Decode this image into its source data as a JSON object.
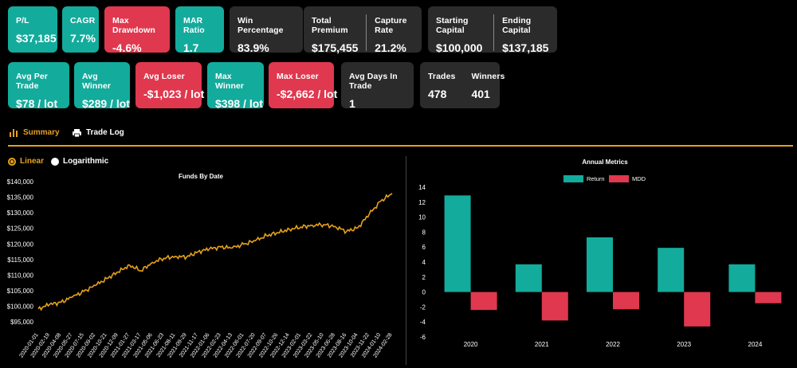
{
  "cards_row1": [
    {
      "label": "P/L",
      "value": "$37,185",
      "color": "teal"
    },
    {
      "label": "CAGR",
      "value": "7.7%",
      "color": "teal"
    },
    {
      "label": "Max Drawdown",
      "value": "-4.6%",
      "color": "red"
    },
    {
      "label": "MAR Ratio",
      "value": "1.7",
      "color": "teal"
    },
    {
      "label": "Win Percentage",
      "value": "83.9%",
      "color": "dark"
    }
  ],
  "split_row1": [
    {
      "left": {
        "label": "Total Premium",
        "value": "$175,455"
      },
      "right": {
        "label": "Capture Rate",
        "value": "21.2%"
      }
    },
    {
      "left": {
        "label": "Starting Capital",
        "value": "$100,000"
      },
      "right": {
        "label": "Ending Capital",
        "value": "$137,185"
      }
    }
  ],
  "cards_row2": [
    {
      "label": "Avg Per Trade",
      "value": "$78 / lot",
      "color": "teal"
    },
    {
      "label": "Avg Winner",
      "value": "$289 / lot",
      "color": "teal"
    },
    {
      "label": "Avg Loser",
      "value": "-$1,023 / lot",
      "color": "red"
    },
    {
      "label": "Max Winner",
      "value": "$398 / lot",
      "color": "teal"
    },
    {
      "label": "Max Loser",
      "value": "-$2,662 / lot",
      "color": "red"
    },
    {
      "label": "Avg Days In Trade",
      "value": "1",
      "color": "dark"
    }
  ],
  "split_row2": {
    "left": {
      "label": "Trades",
      "value": "478"
    },
    "right": {
      "label": "Winners",
      "value": "401"
    }
  },
  "tabs": [
    {
      "label": "Summary",
      "icon": "bar-chart-icon",
      "active": true
    },
    {
      "label": "Trade Log",
      "icon": "printer-icon",
      "active": false
    }
  ],
  "scale_options": [
    {
      "label": "Linear",
      "selected": true
    },
    {
      "label": "Logarithmic",
      "selected": false
    }
  ],
  "colors": {
    "teal": "#13ab9c",
    "red": "#e0384e",
    "dark": "#2b2b2b",
    "accent": "#e5a11b"
  },
  "chart_data": [
    {
      "type": "line",
      "title": "Funds By Date",
      "ylim": [
        93000,
        141000
      ],
      "yticks": [
        "$95,000",
        "$100,000",
        "$105,000",
        "$110,000",
        "$115,000",
        "$120,000",
        "$125,000",
        "$130,000",
        "$135,000",
        "$140,000"
      ],
      "ytick_values": [
        95000,
        100000,
        105000,
        110000,
        115000,
        120000,
        125000,
        130000,
        135000,
        140000
      ],
      "x_dates": [
        "2020-01-01",
        "2020-02-19",
        "2020-04-08",
        "2020-05-27",
        "2020-07-15",
        "2020-09-02",
        "2020-10-21",
        "2020-12-09",
        "2021-01-27",
        "2021-03-17",
        "2021-05-06",
        "2021-06-23",
        "2021-08-11",
        "2021-09-29",
        "2021-11-17",
        "2022-01-06",
        "2022-02-23",
        "2022-04-13",
        "2022-06-01",
        "2022-07-20",
        "2022-09-07",
        "2022-10-26",
        "2022-12-14",
        "2023-02-01",
        "2023-03-22",
        "2023-05-10",
        "2023-06-28",
        "2023-08-16",
        "2023-10-04",
        "2023-11-22",
        "2024-01-10",
        "2024-02-28"
      ],
      "series": [
        {
          "color": "#e5a11b",
          "values": [
            99200,
            100600,
            101300,
            103000,
            104800,
            106700,
            108900,
            111000,
            113200,
            111400,
            114100,
            115400,
            116000,
            115800,
            117500,
            118400,
            119000,
            118700,
            119900,
            121000,
            122700,
            123600,
            124700,
            125400,
            126000,
            126200,
            125600,
            124000,
            125200,
            129600,
            133700,
            136200
          ]
        }
      ]
    },
    {
      "type": "bar",
      "title": "Annual Metrics",
      "categories": [
        "2020",
        "2021",
        "2022",
        "2023",
        "2024"
      ],
      "ylim": [
        -6,
        14
      ],
      "yticks": [
        -6,
        -4,
        -2,
        0,
        2,
        4,
        6,
        8,
        10,
        12,
        14
      ],
      "legend": "top-center",
      "series": [
        {
          "name": "Return",
          "color": "#13ab9c",
          "values": [
            12.9,
            3.7,
            7.3,
            5.9,
            3.7
          ]
        },
        {
          "name": "MDD",
          "color": "#e0384e",
          "values": [
            -2.4,
            -3.8,
            -2.3,
            -4.6,
            -1.5
          ]
        }
      ]
    }
  ]
}
